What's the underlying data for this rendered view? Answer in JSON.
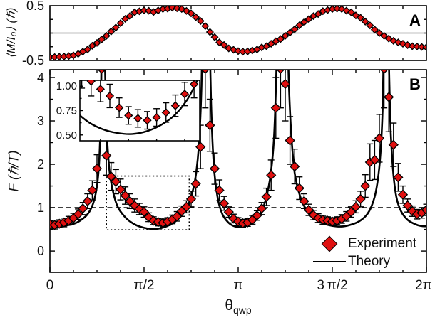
{
  "chart_data": [
    {
      "type": "line",
      "panel_label": "A",
      "ylabel": "⟨M/I₀⟩ (ℏ)",
      "ylim": [
        -0.5,
        0.5
      ],
      "yticks": [
        {
          "v": 0.5,
          "label": "0.5"
        },
        {
          "v": -0.5,
          "label": "-0.5"
        }
      ],
      "xlim_over_pi": [
        0,
        2
      ],
      "zero_line": 0,
      "theory": {
        "t_start": 0,
        "t_step": 0.05,
        "values": [
          -0.44,
          -0.435,
          -0.42,
          -0.38,
          -0.3,
          -0.18,
          -0.05,
          0.1,
          0.26,
          0.38,
          0.415,
          0.385,
          0.44,
          0.465,
          0.44,
          0.36,
          0.22,
          0.02,
          -0.17,
          -0.28,
          -0.33,
          -0.335,
          -0.3,
          -0.24,
          -0.15,
          -0.05,
          0.07,
          0.2,
          0.31,
          0.4,
          0.44,
          0.44,
          0.38,
          0.28,
          0.14,
          0.0,
          -0.1,
          -0.17,
          -0.22,
          -0.245,
          -0.26
        ]
      },
      "experiment": {
        "t_start": 0,
        "t_step": 0.025,
        "values": [
          -0.44,
          -0.438,
          -0.432,
          -0.428,
          -0.42,
          -0.408,
          -0.38,
          -0.34,
          -0.3,
          -0.232,
          -0.18,
          -0.115,
          -0.05,
          0.03,
          0.1,
          0.18,
          0.26,
          0.312,
          0.38,
          0.398,
          0.415,
          0.408,
          0.385,
          0.413,
          0.44,
          0.447,
          0.465,
          0.453,
          0.44,
          0.405,
          0.36,
          0.29,
          0.22,
          0.128,
          0.02,
          -0.075,
          -0.17,
          -0.218,
          -0.28,
          -0.305,
          -0.33,
          -0.34,
          -0.335,
          -0.318,
          -0.3,
          -0.262,
          -0.24,
          -0.195,
          -0.15,
          -0.108,
          -0.05,
          0.01,
          0.07,
          0.142,
          0.2,
          0.255,
          0.31,
          0.348,
          0.4,
          0.42,
          0.44,
          0.447,
          0.44,
          0.41,
          0.38,
          0.322,
          0.28,
          0.21,
          0.14,
          0.062,
          0.0,
          -0.05,
          -0.1,
          -0.142,
          -0.17,
          -0.195,
          -0.22,
          -0.24,
          -0.245,
          -0.253,
          -0.26
        ]
      }
    },
    {
      "type": "scatter+line",
      "panel_label": "B",
      "ylabel": "F (ℏ/T)",
      "ylim": [
        -0.49,
        4.18
      ],
      "yticks": [
        {
          "v": 0,
          "label": "0"
        },
        {
          "v": 1,
          "label": "1"
        },
        {
          "v": 2,
          "label": "2"
        },
        {
          "v": 3,
          "label": "3"
        },
        {
          "v": 4,
          "label": "4"
        }
      ],
      "xlim_over_pi": [
        0,
        2
      ],
      "xticks": [
        {
          "t": 0,
          "label": "0"
        },
        {
          "t": 0.5,
          "label": "π/2"
        },
        {
          "t": 1,
          "label": "π"
        },
        {
          "t": 1.5,
          "label": "3 π/2"
        },
        {
          "t": 2,
          "label": "2π"
        }
      ],
      "xlabel_base": "θ",
      "xlabel_sub": "qwp",
      "dashed_reference_F": 1,
      "dotted_zoom_box": {
        "t0": 0.3,
        "t1": 0.74,
        "F0": 0.49,
        "F1": 1.73
      },
      "theory_anchors": [
        [
          0,
          0.6
        ],
        [
          0.06,
          0.58
        ],
        [
          0.12,
          0.62
        ],
        [
          0.16,
          0.7
        ],
        [
          0.2,
          0.85
        ],
        [
          0.23,
          1.1
        ],
        [
          0.25,
          1.5
        ],
        [
          0.262,
          2.1
        ],
        [
          0.27,
          3.2
        ],
        [
          0.278,
          6.0
        ],
        [
          0.283,
          8.0
        ],
        [
          0.29,
          5.0
        ],
        [
          0.3,
          3.0
        ],
        [
          0.315,
          1.9
        ],
        [
          0.335,
          1.38
        ],
        [
          0.36,
          1.02
        ],
        [
          0.4,
          0.78
        ],
        [
          0.44,
          0.64
        ],
        [
          0.48,
          0.56
        ],
        [
          0.52,
          0.52
        ],
        [
          0.56,
          0.51
        ],
        [
          0.6,
          0.54
        ],
        [
          0.64,
          0.61
        ],
        [
          0.68,
          0.73
        ],
        [
          0.72,
          0.95
        ],
        [
          0.75,
          1.25
        ],
        [
          0.775,
          1.75
        ],
        [
          0.792,
          2.5
        ],
        [
          0.805,
          3.8
        ],
        [
          0.815,
          6.0
        ],
        [
          0.825,
          8.0
        ],
        [
          0.835,
          8.0
        ],
        [
          0.845,
          5.5
        ],
        [
          0.856,
          3.4
        ],
        [
          0.87,
          2.0
        ],
        [
          0.89,
          1.25
        ],
        [
          0.915,
          0.86
        ],
        [
          0.945,
          0.67
        ],
        [
          0.975,
          0.58
        ],
        [
          1.005,
          0.555
        ],
        [
          1.035,
          0.57
        ],
        [
          1.065,
          0.62
        ],
        [
          1.095,
          0.72
        ],
        [
          1.125,
          0.92
        ],
        [
          1.15,
          1.25
        ],
        [
          1.172,
          1.75
        ],
        [
          1.19,
          2.6
        ],
        [
          1.203,
          4.2
        ],
        [
          1.213,
          6.5
        ],
        [
          1.225,
          8.5
        ],
        [
          1.242,
          8.5
        ],
        [
          1.255,
          6.0
        ],
        [
          1.268,
          4.0
        ],
        [
          1.282,
          2.7
        ],
        [
          1.3,
          1.8
        ],
        [
          1.33,
          1.25
        ],
        [
          1.36,
          0.97
        ],
        [
          1.4,
          0.77
        ],
        [
          1.44,
          0.66
        ],
        [
          1.48,
          0.6
        ],
        [
          1.52,
          0.57
        ],
        [
          1.56,
          0.57
        ],
        [
          1.6,
          0.61
        ],
        [
          1.64,
          0.68
        ],
        [
          1.68,
          0.82
        ],
        [
          1.71,
          1.05
        ],
        [
          1.735,
          1.45
        ],
        [
          1.755,
          2.2
        ],
        [
          1.768,
          3.4
        ],
        [
          1.778,
          6.0
        ],
        [
          1.788,
          8.0
        ],
        [
          1.797,
          5.0
        ],
        [
          1.808,
          3.0
        ],
        [
          1.822,
          1.9
        ],
        [
          1.84,
          1.25
        ],
        [
          1.865,
          0.92
        ],
        [
          1.9,
          0.72
        ],
        [
          1.94,
          0.62
        ],
        [
          1.97,
          0.58
        ],
        [
          2.0,
          0.57
        ]
      ],
      "experiment": {
        "t_start": 0,
        "t_step": 0.025,
        "values": [
          0.62,
          0.6,
          0.63,
          0.66,
          0.7,
          0.76,
          0.85,
          0.98,
          1.15,
          1.4,
          1.9,
          4.2,
          2.2,
          1.72,
          1.6,
          1.42,
          1.28,
          1.15,
          1.05,
          0.97,
          0.9,
          0.78,
          0.7,
          0.67,
          0.65,
          0.68,
          0.73,
          0.8,
          0.92,
          1.02,
          1.2,
          1.55,
          2.4,
          4.2,
          2.9,
          1.9,
          1.4,
          1.1,
          0.9,
          0.75,
          0.68,
          0.64,
          0.66,
          0.72,
          0.82,
          0.98,
          1.25,
          1.75,
          3.3,
          4.2,
          3.85,
          2.55,
          1.95,
          1.45,
          1.15,
          0.95,
          0.83,
          0.76,
          0.72,
          0.7,
          0.68,
          0.7,
          0.74,
          0.8,
          0.9,
          1.02,
          1.2,
          1.5,
          2.05,
          2.1,
          2.6,
          4.2,
          3.55,
          2.45,
          1.7,
          1.3,
          1.05,
          0.92,
          0.85,
          0.88,
          0.95
        ],
        "errors": [
          0.09,
          0.09,
          0.09,
          0.1,
          0.1,
          0.11,
          0.12,
          0.14,
          0.17,
          0.22,
          0.32,
          0.9,
          0.45,
          0.32,
          0.28,
          0.24,
          0.2,
          0.17,
          0.15,
          0.13,
          0.12,
          0.1,
          0.09,
          0.09,
          0.09,
          0.09,
          0.1,
          0.11,
          0.12,
          0.14,
          0.18,
          0.28,
          0.5,
          0.9,
          0.6,
          0.36,
          0.24,
          0.16,
          0.12,
          0.1,
          0.09,
          0.09,
          0.09,
          0.1,
          0.11,
          0.14,
          0.2,
          0.35,
          0.7,
          0.9,
          0.85,
          0.55,
          0.4,
          0.26,
          0.17,
          0.13,
          0.11,
          0.1,
          0.1,
          0.09,
          0.09,
          0.09,
          0.1,
          0.11,
          0.12,
          0.14,
          0.18,
          0.26,
          0.42,
          0.45,
          0.55,
          0.9,
          0.8,
          0.5,
          0.32,
          0.2,
          0.15,
          0.12,
          0.11,
          0.12,
          0.13
        ]
      },
      "inset": {
        "t_range_over_pi": [
          0.42,
          0.74
        ],
        "F_range": [
          0.44,
          1.06
        ],
        "yticks": [
          {
            "v": 1.0,
            "label": "1.00"
          },
          {
            "v": 0.75,
            "label": "0.75"
          },
          {
            "v": 0.5,
            "label": "0.50"
          }
        ]
      },
      "legend": {
        "entries": [
          {
            "marker": "diamond",
            "label": "Experiment"
          },
          {
            "marker": "line",
            "label": "Theory"
          }
        ]
      }
    }
  ],
  "colors": {
    "experiment_fill": "#e01010",
    "marker_edge": "#000000",
    "theory_line": "#000000",
    "axis": "#000000"
  }
}
